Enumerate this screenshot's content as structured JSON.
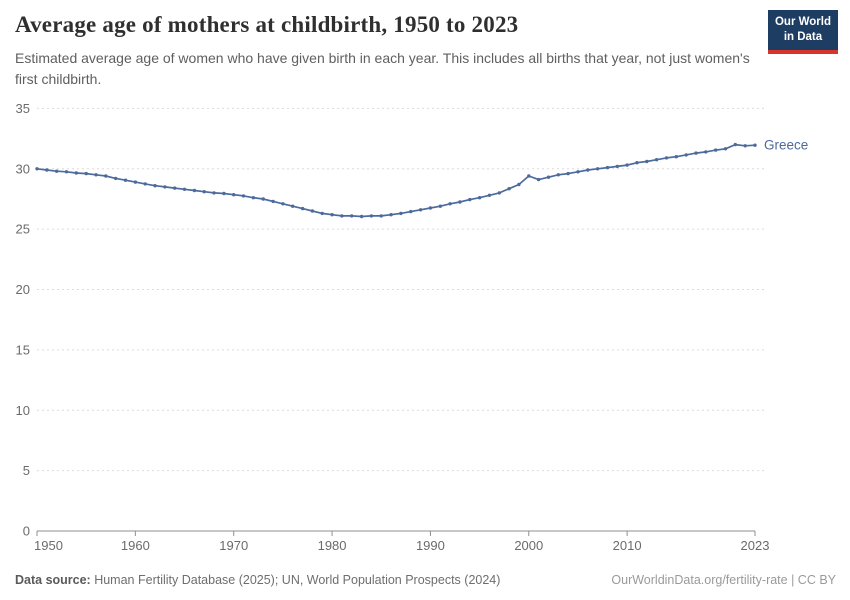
{
  "header": {
    "title": "Average age of mothers at childbirth, 1950 to 2023",
    "subtitle": "Estimated average age of women who have given birth in each year. This includes all births that year, not just women's first childbirth.",
    "logo": {
      "line1": "Our World",
      "line2": "in Data"
    }
  },
  "footer": {
    "source_label": "Data source:",
    "source_text": " Human Fertility Database (2025); UN, World Population Prospects (2024)",
    "attribution": "OurWorldinData.org/fertility-rate | CC BY"
  },
  "colors": {
    "line": "#4c6a9c",
    "grid": "#dcdcdc",
    "axis": "#8f8f8f",
    "tick_text": "#6b6b6b",
    "logo_bg": "#1d3d63",
    "logo_stripe": "#d7352b"
  },
  "chart_data": {
    "type": "line",
    "title": "Average age of mothers at childbirth, 1950 to 2023",
    "xlabel": "",
    "ylabel": "",
    "ylim": [
      0,
      35
    ],
    "yticks": [
      0,
      5,
      10,
      15,
      20,
      25,
      30,
      35
    ],
    "xticks": [
      1950,
      1960,
      1970,
      1980,
      1990,
      2000,
      2010,
      2023
    ],
    "grid": "horizontal-dashed",
    "legend_position": "end-of-line-label",
    "x": [
      1950,
      1951,
      1952,
      1953,
      1954,
      1955,
      1956,
      1957,
      1958,
      1959,
      1960,
      1961,
      1962,
      1963,
      1964,
      1965,
      1966,
      1967,
      1968,
      1969,
      1970,
      1971,
      1972,
      1973,
      1974,
      1975,
      1976,
      1977,
      1978,
      1979,
      1980,
      1981,
      1982,
      1983,
      1984,
      1985,
      1986,
      1987,
      1988,
      1989,
      1990,
      1991,
      1992,
      1993,
      1994,
      1995,
      1996,
      1997,
      1998,
      1999,
      2000,
      2001,
      2002,
      2003,
      2004,
      2005,
      2006,
      2007,
      2008,
      2009,
      2010,
      2011,
      2012,
      2013,
      2014,
      2015,
      2016,
      2017,
      2018,
      2019,
      2020,
      2021,
      2022,
      2023
    ],
    "series": [
      {
        "name": "Greece",
        "color": "#4c6a9c",
        "values": [
          30.0,
          29.9,
          29.8,
          29.75,
          29.65,
          29.6,
          29.5,
          29.4,
          29.2,
          29.05,
          28.9,
          28.75,
          28.6,
          28.5,
          28.4,
          28.3,
          28.2,
          28.1,
          28.0,
          27.95,
          27.85,
          27.75,
          27.6,
          27.5,
          27.3,
          27.1,
          26.9,
          26.7,
          26.5,
          26.3,
          26.2,
          26.1,
          26.1,
          26.05,
          26.1,
          26.1,
          26.2,
          26.3,
          26.45,
          26.6,
          26.75,
          26.9,
          27.1,
          27.25,
          27.45,
          27.6,
          27.8,
          28.0,
          28.35,
          28.7,
          29.4,
          29.1,
          29.3,
          29.5,
          29.6,
          29.75,
          29.9,
          30.0,
          30.1,
          30.2,
          30.3,
          30.5,
          30.6,
          30.75,
          30.9,
          31.0,
          31.15,
          31.3,
          31.4,
          31.55,
          31.65,
          32.0,
          31.9,
          31.95
        ]
      }
    ]
  }
}
